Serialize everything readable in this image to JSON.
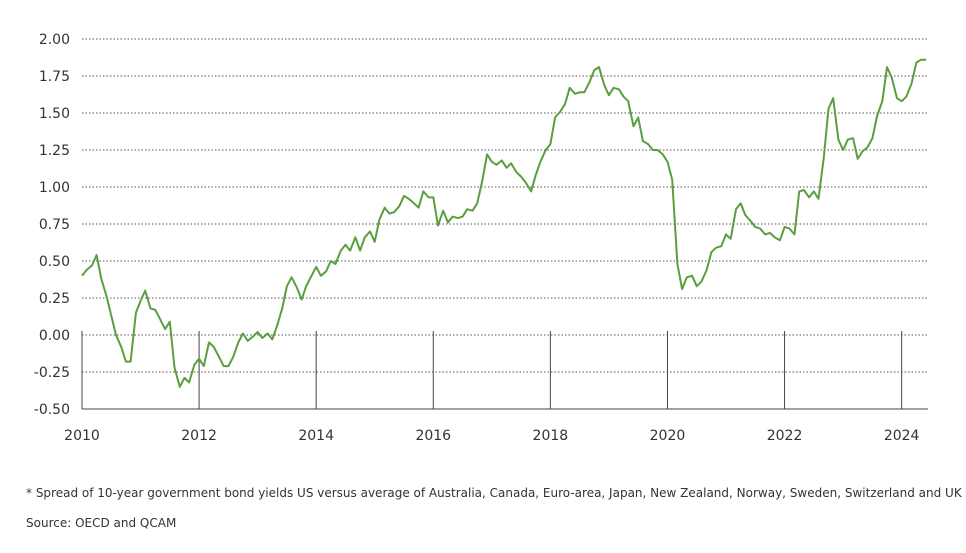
{
  "colors": {
    "line": "#5a9e3e",
    "grid": "#555555",
    "axis": "#444444",
    "text": "#333333"
  },
  "footnote": "* Spread of 10-year government bond yields US versus average of Australia, Canada, Euro-area, Japan, New Zealand, Norway, Sweden, Switzerland and UK",
  "source": "Source: OECD and QCAM",
  "chart_data": {
    "type": "line",
    "title": "",
    "xlabel": "",
    "ylabel": "",
    "xlim": [
      2010,
      2024.45
    ],
    "ylim": [
      -0.5,
      2.0
    ],
    "grid": "horizontal dotted",
    "legend": "none",
    "x_ticks": [
      2010,
      2012,
      2014,
      2016,
      2018,
      2020,
      2022,
      2024
    ],
    "x_tick_labels": [
      "2010",
      "2012",
      "2014",
      "2016",
      "2018",
      "2020",
      "2022",
      "2024"
    ],
    "y_ticks": [
      2.0,
      1.75,
      1.5,
      1.25,
      1.0,
      0.75,
      0.5,
      0.25,
      0.0,
      -0.25,
      -0.5
    ],
    "y_tick_labels": [
      "2.00",
      "1.75",
      "1.50",
      "1.25",
      "1.00",
      "0.75",
      "0.50",
      "0.25",
      "0.00",
      "-0.25",
      "-0.50"
    ],
    "series": [
      {
        "x": [
          2010.0,
          2010.08,
          2010.17,
          2010.25,
          2010.33,
          2010.42,
          2010.5,
          2010.58,
          2010.67,
          2010.75,
          2010.83,
          2010.92,
          2011.0,
          2011.08,
          2011.17,
          2011.25,
          2011.33,
          2011.42,
          2011.5,
          2011.58,
          2011.67,
          2011.75,
          2011.83,
          2011.92,
          2012.0,
          2012.08,
          2012.17,
          2012.25,
          2012.33,
          2012.42,
          2012.5,
          2012.58,
          2012.67,
          2012.75,
          2012.83,
          2012.92,
          2013.0,
          2013.08,
          2013.17,
          2013.25,
          2013.33,
          2013.42,
          2013.5,
          2013.58,
          2013.67,
          2013.75,
          2013.83,
          2013.92,
          2014.0,
          2014.08,
          2014.17,
          2014.25,
          2014.33,
          2014.42,
          2014.5,
          2014.58,
          2014.67,
          2014.75,
          2014.83,
          2014.92,
          2015.0,
          2015.08,
          2015.17,
          2015.25,
          2015.33,
          2015.42,
          2015.5,
          2015.58,
          2015.67,
          2015.75,
          2015.83,
          2015.92,
          2016.0,
          2016.08,
          2016.17,
          2016.25,
          2016.33,
          2016.42,
          2016.5,
          2016.58,
          2016.67,
          2016.75,
          2016.83,
          2016.92,
          2017.0,
          2017.08,
          2017.17,
          2017.25,
          2017.33,
          2017.42,
          2017.5,
          2017.58,
          2017.67,
          2017.75,
          2017.83,
          2017.92,
          2018.0,
          2018.08,
          2018.17,
          2018.25,
          2018.33,
          2018.42,
          2018.5,
          2018.58,
          2018.67,
          2018.75,
          2018.83,
          2018.92,
          2019.0,
          2019.08,
          2019.17,
          2019.25,
          2019.33,
          2019.42,
          2019.5,
          2019.58,
          2019.67,
          2019.75,
          2019.83,
          2019.92,
          2020.0,
          2020.08,
          2020.17,
          2020.25,
          2020.33,
          2020.42,
          2020.5,
          2020.58,
          2020.67,
          2020.75,
          2020.83,
          2020.92,
          2021.0,
          2021.08,
          2021.17,
          2021.25,
          2021.33,
          2021.42,
          2021.5,
          2021.58,
          2021.67,
          2021.75,
          2021.83,
          2021.92,
          2022.0,
          2022.08,
          2022.17,
          2022.25,
          2022.33,
          2022.42,
          2022.5,
          2022.58,
          2022.67,
          2022.75,
          2022.83,
          2022.92,
          2023.0,
          2023.08,
          2023.17,
          2023.25,
          2023.33,
          2023.42,
          2023.5,
          2023.58,
          2023.67,
          2023.75,
          2023.83,
          2023.92,
          2024.0,
          2024.08,
          2024.17,
          2024.25,
          2024.33,
          2024.42
        ],
        "y": [
          0.4,
          0.44,
          0.47,
          0.54,
          0.38,
          0.26,
          0.13,
          0.0,
          -0.08,
          -0.18,
          -0.18,
          0.15,
          0.23,
          0.3,
          0.18,
          0.17,
          0.11,
          0.04,
          0.09,
          -0.22,
          -0.35,
          -0.29,
          -0.32,
          -0.2,
          -0.16,
          -0.21,
          -0.05,
          -0.08,
          -0.14,
          -0.21,
          -0.21,
          -0.15,
          -0.05,
          0.01,
          -0.04,
          -0.01,
          0.02,
          -0.02,
          0.01,
          -0.03,
          0.06,
          0.18,
          0.33,
          0.39,
          0.32,
          0.24,
          0.33,
          0.4,
          0.46,
          0.4,
          0.43,
          0.5,
          0.48,
          0.57,
          0.61,
          0.57,
          0.66,
          0.57,
          0.66,
          0.7,
          0.63,
          0.78,
          0.86,
          0.82,
          0.83,
          0.87,
          0.94,
          0.92,
          0.89,
          0.86,
          0.97,
          0.93,
          0.93,
          0.74,
          0.84,
          0.76,
          0.8,
          0.79,
          0.8,
          0.85,
          0.84,
          0.89,
          1.03,
          1.22,
          1.17,
          1.15,
          1.18,
          1.13,
          1.16,
          1.1,
          1.07,
          1.03,
          0.97,
          1.08,
          1.17,
          1.25,
          1.29,
          1.47,
          1.51,
          1.56,
          1.67,
          1.63,
          1.64,
          1.64,
          1.71,
          1.79,
          1.81,
          1.69,
          1.62,
          1.67,
          1.66,
          1.61,
          1.58,
          1.41,
          1.47,
          1.31,
          1.29,
          1.25,
          1.25,
          1.22,
          1.17,
          1.05,
          0.48,
          0.31,
          0.39,
          0.4,
          0.33,
          0.36,
          0.44,
          0.56,
          0.59,
          0.6,
          0.68,
          0.65,
          0.85,
          0.89,
          0.81,
          0.77,
          0.73,
          0.72,
          0.68,
          0.69,
          0.66,
          0.64,
          0.73,
          0.72,
          0.68,
          0.97,
          0.98,
          0.93,
          0.97,
          0.92,
          1.2,
          1.53,
          1.6,
          1.32,
          1.25,
          1.32,
          1.33,
          1.19,
          1.24,
          1.27,
          1.33,
          1.48,
          1.58,
          1.81,
          1.74,
          1.6,
          1.58,
          1.61,
          1.7,
          1.84,
          1.86,
          1.86
        ]
      }
    ]
  }
}
